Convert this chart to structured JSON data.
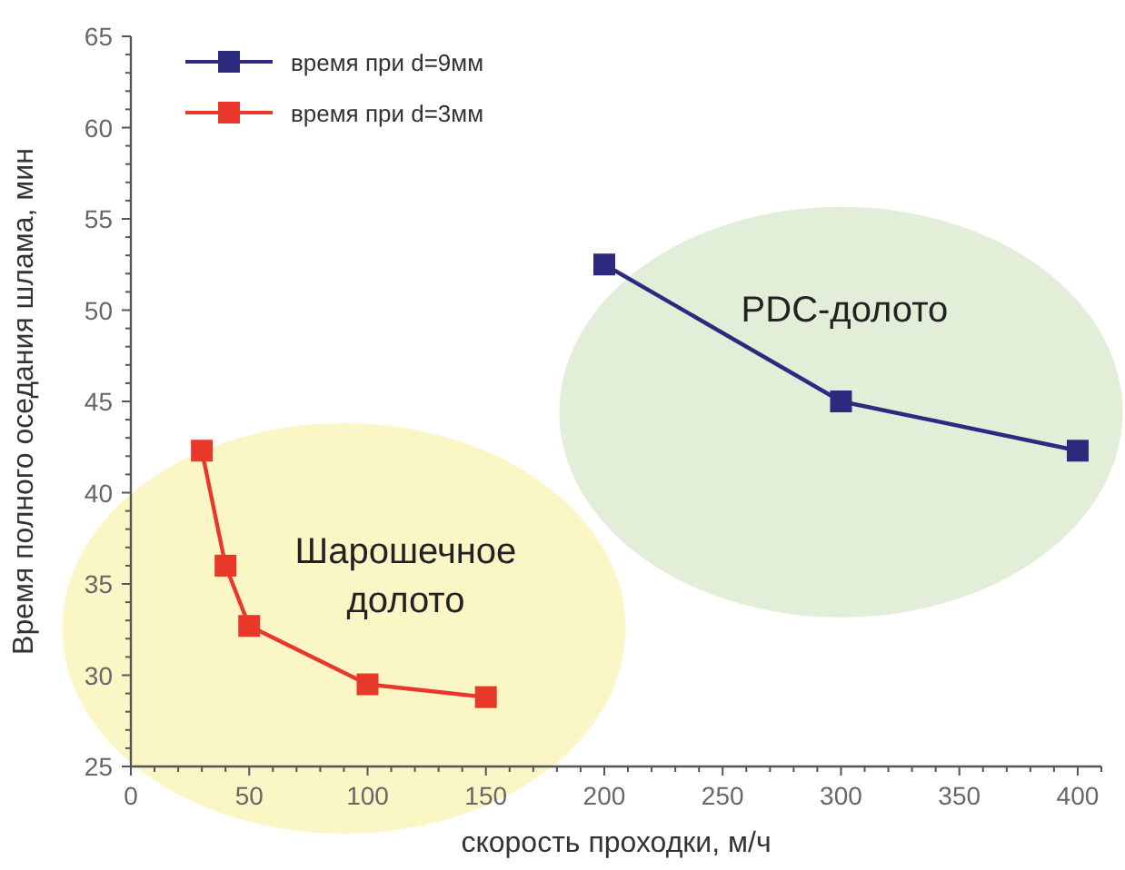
{
  "chart_data": {
    "type": "line",
    "xlabel": "скорость проходки, м/ч",
    "ylabel": "Время полного оседания шлама, мин",
    "xlim": [
      0,
      410
    ],
    "ylim": [
      25,
      65
    ],
    "xticks": [
      0,
      {
        "value": 10,
        "label": null
      },
      {
        "value": 20,
        "label": null
      },
      {
        "value": 30,
        "label": null
      },
      {
        "value": 40,
        "label": null
      },
      50,
      {
        "value": 60,
        "label": null
      },
      {
        "value": 70,
        "label": null
      },
      {
        "value": 80,
        "label": null
      },
      {
        "value": 90,
        "label": null
      },
      100,
      {
        "value": 110,
        "label": null
      },
      {
        "value": 120,
        "label": null
      },
      {
        "value": 130,
        "label": null
      },
      {
        "value": 140,
        "label": null
      },
      150,
      {
        "value": 160,
        "label": null
      },
      {
        "value": 170,
        "label": null
      },
      {
        "value": 180,
        "label": null
      },
      {
        "value": 190,
        "label": null
      },
      200,
      {
        "value": 210,
        "label": null
      },
      {
        "value": 220,
        "label": null
      },
      {
        "value": 230,
        "label": null
      },
      {
        "value": 240,
        "label": null
      },
      250,
      {
        "value": 260,
        "label": null
      },
      {
        "value": 270,
        "label": null
      },
      {
        "value": 280,
        "label": null
      },
      {
        "value": 290,
        "label": null
      },
      300,
      {
        "value": 310,
        "label": null
      },
      {
        "value": 320,
        "label": null
      },
      {
        "value": 330,
        "label": null
      },
      {
        "value": 340,
        "label": null
      },
      350,
      {
        "value": 360,
        "label": null
      },
      {
        "value": 370,
        "label": null
      },
      {
        "value": 380,
        "label": null
      },
      {
        "value": 390,
        "label": null
      },
      400,
      {
        "value": 410,
        "label": null
      }
    ],
    "yticks": [
      25,
      {
        "value": 26,
        "label": null
      },
      {
        "value": 27,
        "label": null
      },
      {
        "value": 28,
        "label": null
      },
      {
        "value": 29,
        "label": null
      },
      30,
      {
        "value": 31,
        "label": null
      },
      {
        "value": 32,
        "label": null
      },
      {
        "value": 33,
        "label": null
      },
      {
        "value": 34,
        "label": null
      },
      35,
      {
        "value": 36,
        "label": null
      },
      {
        "value": 37,
        "label": null
      },
      {
        "value": 38,
        "label": null
      },
      {
        "value": 39,
        "label": null
      },
      40,
      {
        "value": 41,
        "label": null
      },
      {
        "value": 42,
        "label": null
      },
      {
        "value": 43,
        "label": null
      },
      {
        "value": 44,
        "label": null
      },
      45,
      {
        "value": 46,
        "label": null
      },
      {
        "value": 47,
        "label": null
      },
      {
        "value": 48,
        "label": null
      },
      {
        "value": 49,
        "label": null
      },
      50,
      {
        "value": 51,
        "label": null
      },
      {
        "value": 52,
        "label": null
      },
      {
        "value": 53,
        "label": null
      },
      {
        "value": 54,
        "label": null
      },
      55,
      {
        "value": 56,
        "label": null
      },
      {
        "value": 57,
        "label": null
      },
      {
        "value": 58,
        "label": null
      },
      {
        "value": 59,
        "label": null
      },
      60,
      {
        "value": 61,
        "label": null
      },
      {
        "value": 62,
        "label": null
      },
      {
        "value": 63,
        "label": null
      },
      {
        "value": 64,
        "label": null
      },
      65
    ],
    "series": [
      {
        "name": "время при d=9мм",
        "color": "#2b2a7f",
        "x": [
          200,
          300,
          400
        ],
        "values": [
          52.5,
          45,
          42.3
        ]
      },
      {
        "name": "время при d=3мм",
        "color": "#e8382a",
        "x": [
          30,
          40,
          50,
          100,
          150
        ],
        "values": [
          42.3,
          36,
          32.7,
          29.5,
          28.8
        ]
      }
    ],
    "annotations": [
      "PDC-долото",
      "Шарошечное\nдолото"
    ],
    "marker": "square",
    "line_style": "solid",
    "grid": false,
    "legend": "top left"
  }
}
